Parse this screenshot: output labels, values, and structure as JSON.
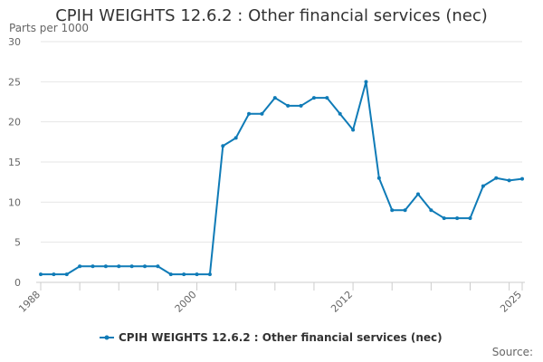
{
  "chart_data": {
    "type": "line",
    "title": "CPIH WEIGHTS 12.6.2 : Other financial services (nec)",
    "y_unit_label": "Parts per 1000",
    "source_label": "Source:",
    "xlabel": "",
    "ylabel": "",
    "ylim": [
      0,
      30
    ],
    "y_ticks": [
      0,
      5,
      10,
      15,
      20,
      25,
      30
    ],
    "x_ticks": [
      1988,
      2000,
      2012,
      2025
    ],
    "x_tick_labels": [
      "1988",
      "2000",
      "2012",
      "2025"
    ],
    "grid": true,
    "legend_position": "bottom",
    "series": [
      {
        "name": "CPIH WEIGHTS 12.6.2 : Other financial services (nec)",
        "color": "#0f7bb7",
        "x": [
          1988,
          1989,
          1990,
          1991,
          1992,
          1993,
          1994,
          1995,
          1996,
          1997,
          1998,
          1999,
          2000,
          2001,
          2002,
          2003,
          2004,
          2005,
          2006,
          2007,
          2008,
          2009,
          2010,
          2011,
          2012,
          2013,
          2014,
          2015,
          2016,
          2017,
          2018,
          2019,
          2020,
          2021,
          2022,
          2023,
          2024,
          2025
        ],
        "values": [
          1,
          1,
          1,
          2,
          2,
          2,
          2,
          2,
          2,
          2,
          1,
          1,
          1,
          1,
          17,
          18,
          21,
          21,
          23,
          22,
          22,
          23,
          23,
          21,
          19,
          25,
          13,
          9,
          9,
          11,
          9,
          8,
          8,
          8,
          12,
          13,
          12.7,
          12.9
        ]
      }
    ]
  }
}
